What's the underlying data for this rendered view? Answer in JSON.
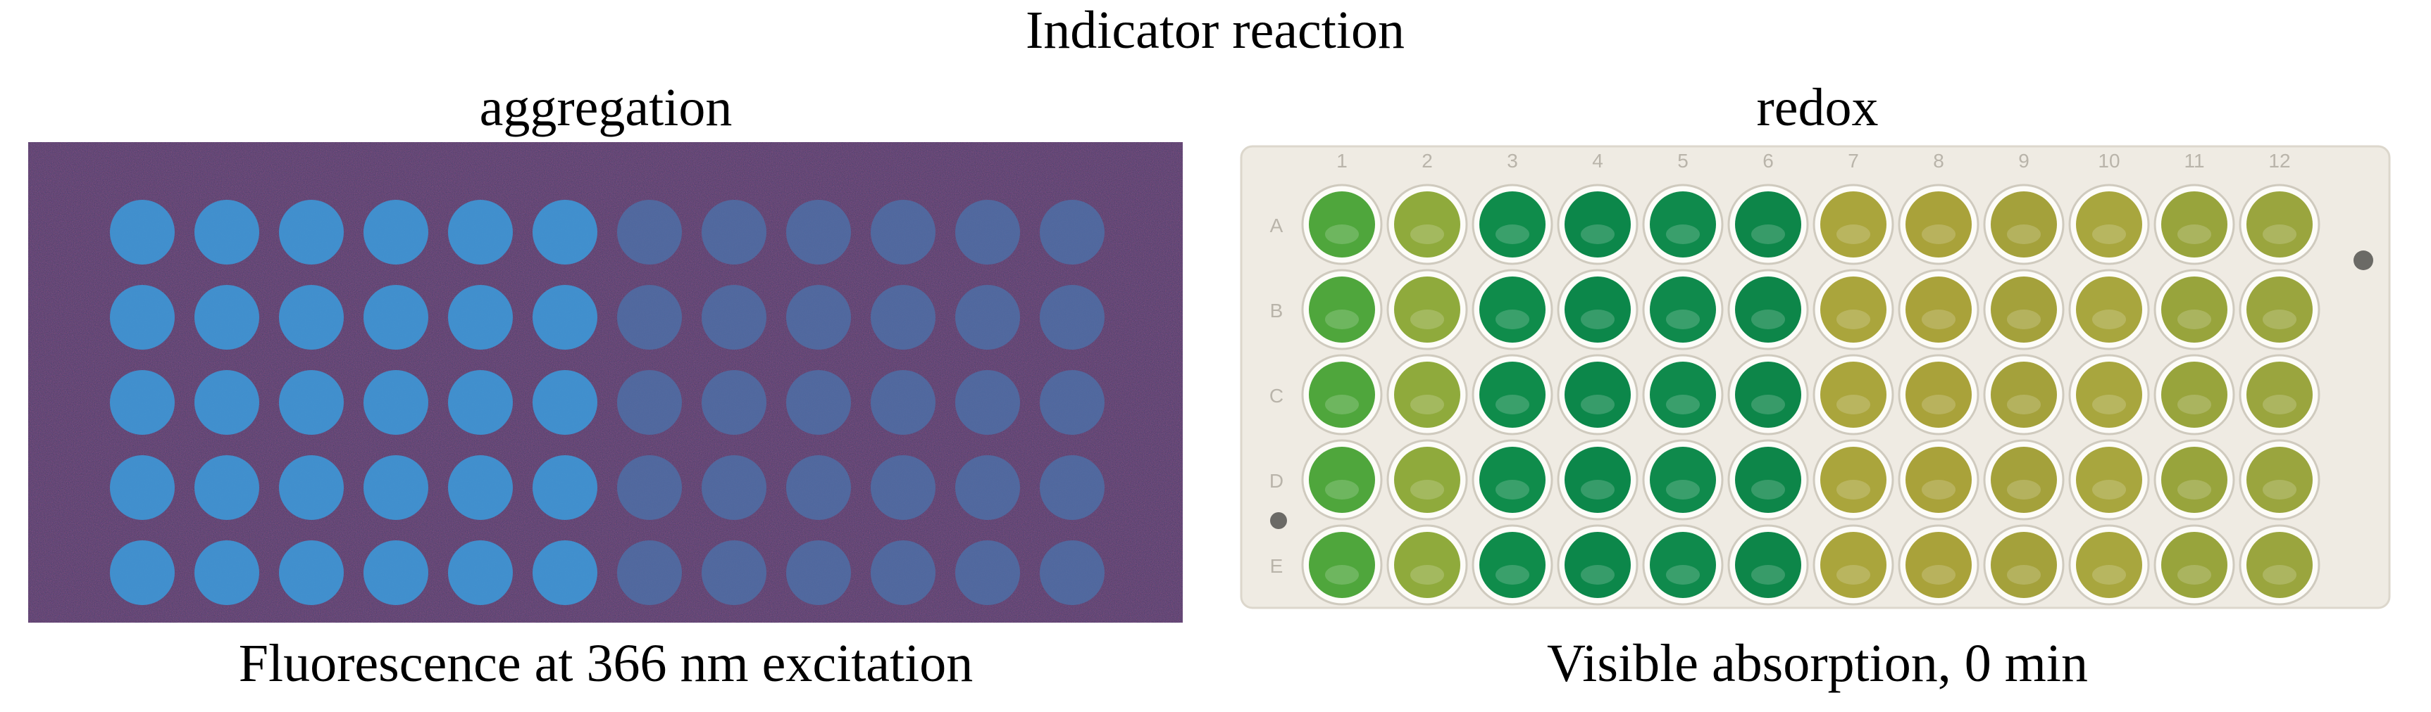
{
  "title": "Indicator reaction",
  "panels": [
    {
      "heading": "aggregation",
      "caption": "Fluorescence at 366 nm excitation"
    },
    {
      "heading": "redox",
      "caption": "Visible absorption, 0 min",
      "column_labels": [
        "1",
        "2",
        "3",
        "4",
        "5",
        "6",
        "7",
        "8",
        "9",
        "10",
        "11",
        "12"
      ],
      "row_labels": [
        "A",
        "B",
        "C",
        "D",
        "E"
      ]
    }
  ]
}
